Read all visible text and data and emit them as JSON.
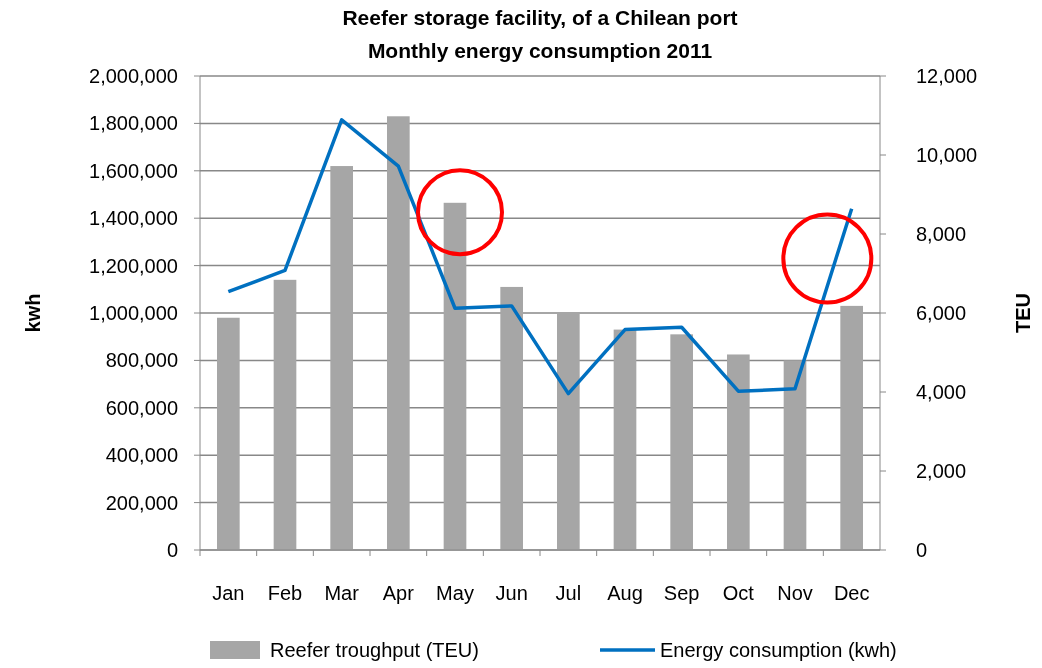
{
  "chart_data": {
    "type": "bar",
    "title": "Reefer storage facility, of a Chilean port\nMonthly energy consumption 2011",
    "ylabel": "kwh",
    "y2label": "TEU",
    "categories": [
      "Jan",
      "Feb",
      "Mar",
      "Apr",
      "May",
      "Jun",
      "Jul",
      "Aug",
      "Sep",
      "Oct",
      "Nov",
      "Dec"
    ],
    "series": [
      {
        "name": "Reefer troughput (TEU)",
        "axis": "y2",
        "color": "#a6a6a6",
        "values": [
          5880,
          6840,
          9720,
          10980,
          8790,
          6660,
          6000,
          5580,
          5460,
          4950,
          4800,
          6180
        ]
      },
      {
        "name": "Energy consumption (kwh)",
        "type": "line",
        "axis": "y",
        "color": "#0070c0",
        "values": [
          1090000,
          1180000,
          1815000,
          1620000,
          1020000,
          1030000,
          660000,
          930000,
          940000,
          670000,
          680000,
          1440000
        ]
      }
    ],
    "ylim": [
      0,
      2000000
    ],
    "yticks": [
      0,
      {
        "value": 200000,
        "label": "200,000"
      },
      {
        "value": 400000,
        "label": "400,000"
      },
      {
        "value": 600000,
        "label": "600,000"
      },
      {
        "value": 800000,
        "label": "800,000"
      },
      {
        "value": 1000000,
        "label": "1,000,000"
      },
      {
        "value": 1200000,
        "label": "1,200,000"
      },
      {
        "value": 1400000,
        "label": "1,400,000"
      },
      {
        "value": 1600000,
        "label": "1,600,000"
      },
      {
        "value": 1800000,
        "label": "1,800,000"
      },
      {
        "value": 2000000,
        "label": "2,000,000"
      }
    ],
    "y2lim": [
      0,
      12000
    ],
    "y2ticks": [
      0,
      {
        "value": 2000,
        "label": "2,000"
      },
      {
        "value": 4000,
        "label": "4,000"
      },
      {
        "value": 6000,
        "label": "6,000"
      },
      {
        "value": 8000,
        "label": "8,000"
      },
      {
        "value": 10000,
        "label": "10,000"
      },
      {
        "value": 12000,
        "label": "12,000"
      }
    ],
    "grid": "y",
    "legend": "bottom",
    "marker": "none",
    "line_style": "solid"
  }
}
